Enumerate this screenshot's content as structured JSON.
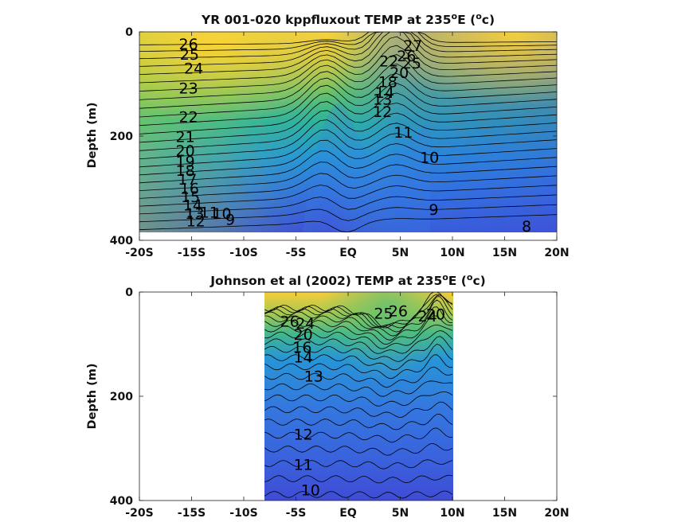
{
  "chart_data": [
    {
      "type": "contour",
      "title": "YR 001-020 kppfluxout TEMP at 235",
      "title_sup": "o",
      "title_mid": "E (",
      "title_unit_sup": "o",
      "title_tail": "c)",
      "ylabel": "Depth (m)",
      "xlim": [
        -20,
        20
      ],
      "ylim": [
        400,
        0
      ],
      "data_extent_x": [
        -20,
        20
      ],
      "data_extent_depth": [
        0,
        385
      ],
      "x_ticks": [
        "-20S",
        "-15S",
        "-10S",
        "-5S",
        "EQ",
        "5N",
        "10N",
        "15N",
        "20N"
      ],
      "y_ticks": [
        "0",
        "200",
        "400"
      ],
      "colormap": [
        "#f9d63a",
        "#6cc26a",
        "#3a9fd8",
        "#4149d8"
      ],
      "contour_labels": [
        {
          "v": 26,
          "lon": -15.3,
          "d": 25
        },
        {
          "v": 25,
          "lon": -15.2,
          "d": 45
        },
        {
          "v": 24,
          "lon": -14.8,
          "d": 72
        },
        {
          "v": 23,
          "lon": -15.3,
          "d": 110
        },
        {
          "v": 22,
          "lon": -15.3,
          "d": 165
        },
        {
          "v": 21,
          "lon": -15.6,
          "d": 203
        },
        {
          "v": 20,
          "lon": -15.6,
          "d": 230
        },
        {
          "v": 19,
          "lon": -15.6,
          "d": 250
        },
        {
          "v": 18,
          "lon": -15.6,
          "d": 268
        },
        {
          "v": 17,
          "lon": -15.4,
          "d": 285
        },
        {
          "v": 16,
          "lon": -15.2,
          "d": 302
        },
        {
          "v": 15,
          "lon": -15.1,
          "d": 318
        },
        {
          "v": 14,
          "lon": -14.9,
          "d": 334
        },
        {
          "v": 13,
          "lon": -14.7,
          "d": 350
        },
        {
          "v": 12,
          "lon": -14.6,
          "d": 365
        },
        {
          "v": 11,
          "lon": -13.3,
          "d": 348
        },
        {
          "v": 10,
          "lon": -12.1,
          "d": 350
        },
        {
          "v": 9,
          "lon": -11.3,
          "d": 362
        },
        {
          "v": 27,
          "lon": 6.2,
          "d": 28
        },
        {
          "v": 26,
          "lon": 5.6,
          "d": 48
        },
        {
          "v": 25,
          "lon": 6.1,
          "d": 62
        },
        {
          "v": 22,
          "lon": 3.9,
          "d": 58
        },
        {
          "v": 20,
          "lon": 4.9,
          "d": 80
        },
        {
          "v": 18,
          "lon": 3.8,
          "d": 98
        },
        {
          "v": 14,
          "lon": 3.5,
          "d": 118
        },
        {
          "v": 13,
          "lon": 3.3,
          "d": 131
        },
        {
          "v": 12,
          "lon": 3.3,
          "d": 155
        },
        {
          "v": 11,
          "lon": 5.3,
          "d": 195
        },
        {
          "v": 10,
          "lon": 7.8,
          "d": 243
        },
        {
          "v": 9,
          "lon": 8.2,
          "d": 343
        },
        {
          "v": 8,
          "lon": 17.1,
          "d": 375
        }
      ]
    },
    {
      "type": "contour",
      "title": "Johnson et al (2002) TEMP at 235",
      "title_sup": "o",
      "title_mid": "E (",
      "title_unit_sup": "o",
      "title_tail": "c)",
      "ylabel": "Depth (m)",
      "xlim": [
        -20,
        20
      ],
      "ylim": [
        400,
        0
      ],
      "data_extent_x": [
        -8,
        10
      ],
      "data_extent_depth": [
        0,
        400
      ],
      "x_ticks": [
        "-20S",
        "-15S",
        "-10S",
        "-5S",
        "EQ",
        "5N",
        "10N",
        "15N",
        "20N"
      ],
      "y_ticks": [
        "0",
        "200",
        "400"
      ],
      "colormap": [
        "#f9d63a",
        "#6cc26a",
        "#3a9fd8",
        "#4149d8"
      ],
      "contour_labels": [
        {
          "v": 26,
          "lon": -5.6,
          "d": 58
        },
        {
          "v": 24,
          "lon": -4.1,
          "d": 62
        },
        {
          "v": 20,
          "lon": -4.3,
          "d": 83
        },
        {
          "v": 16,
          "lon": -4.4,
          "d": 108
        },
        {
          "v": 14,
          "lon": -4.3,
          "d": 127
        },
        {
          "v": 13,
          "lon": -3.3,
          "d": 163
        },
        {
          "v": 12,
          "lon": -4.3,
          "d": 275
        },
        {
          "v": 11,
          "lon": -4.3,
          "d": 333
        },
        {
          "v": 10,
          "lon": -3.6,
          "d": 382
        },
        {
          "v": 25,
          "lon": 3.4,
          "d": 43
        },
        {
          "v": 26,
          "lon": 4.8,
          "d": 38
        },
        {
          "v": 24,
          "lon": 7.6,
          "d": 48
        },
        {
          "v": 20,
          "lon": 8.4,
          "d": 44
        }
      ]
    }
  ]
}
